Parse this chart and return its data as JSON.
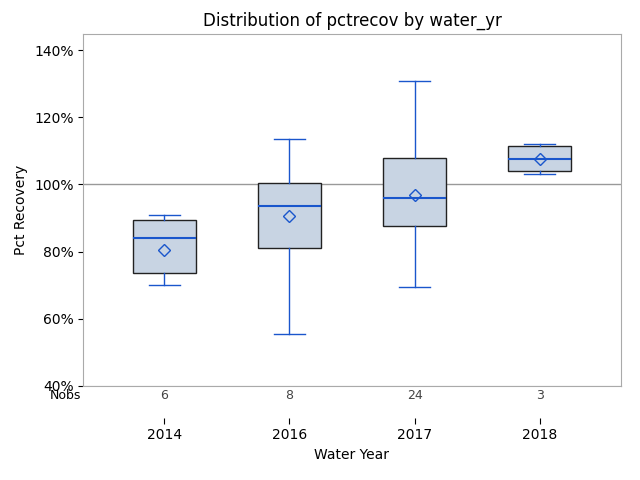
{
  "title": "Distribution of pctrecov by water_yr",
  "xlabel": "Water Year",
  "ylabel": "Pct Recovery",
  "categories": [
    2014,
    2016,
    2017,
    2018
  ],
  "nobs": [
    6,
    8,
    24,
    3
  ],
  "box_data": {
    "2014": {
      "q1": 73.5,
      "median": 84.0,
      "q3": 89.5,
      "whislo": 70.0,
      "whishi": 91.0,
      "mean": 80.5
    },
    "2016": {
      "q1": 81.0,
      "median": 93.5,
      "q3": 100.5,
      "whislo": 55.5,
      "whishi": 113.5,
      "mean": 90.5
    },
    "2017": {
      "q1": 87.5,
      "median": 96.0,
      "q3": 108.0,
      "whislo": 69.5,
      "whishi": 131.0,
      "mean": 97.0
    },
    "2018": {
      "q1": 104.0,
      "median": 107.5,
      "q3": 111.5,
      "whislo": 103.0,
      "whishi": 112.0,
      "mean": 107.5
    }
  },
  "ylim": [
    0.4,
    1.45
  ],
  "yticks": [
    0.4,
    0.6,
    0.8,
    1.0,
    1.2,
    1.4
  ],
  "yticklabels": [
    "40%",
    "60%",
    "80%",
    "100%",
    "120%",
    "140%"
  ],
  "hline_y": 1.0,
  "box_facecolor": "#c8d4e3",
  "box_edgecolor": "#222222",
  "median_color": "#1a56cc",
  "whisker_color": "#1a56cc",
  "cap_color": "#1a56cc",
  "mean_color": "#1a56cc",
  "hline_color": "#999999",
  "background_color": "#ffffff",
  "title_fontsize": 12,
  "label_fontsize": 10,
  "tick_fontsize": 10,
  "nobs_fontsize": 9,
  "box_width": 0.5,
  "positions": [
    1,
    2,
    3,
    4
  ],
  "xlim": [
    0.35,
    4.65
  ]
}
